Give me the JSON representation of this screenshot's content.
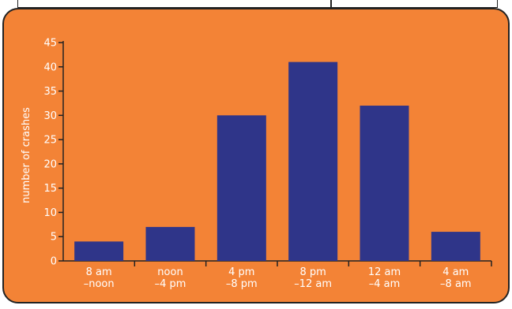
{
  "chart_data": {
    "type": "bar",
    "categories": [
      [
        "8 am",
        "–noon"
      ],
      [
        "noon",
        "–4 pm"
      ],
      [
        "4 pm",
        "–8 pm"
      ],
      [
        "8 pm",
        "–12 am"
      ],
      [
        "12 am",
        "–4 am"
      ],
      [
        "4 am",
        "–8 am"
      ]
    ],
    "values": [
      4,
      7,
      30,
      41,
      32,
      6
    ],
    "ylabel": "number of crashes",
    "xlabel": "",
    "ylim": [
      0,
      45
    ],
    "yticks": [
      0,
      5,
      10,
      15,
      20,
      25,
      30,
      35,
      40,
      45
    ],
    "grid": false
  },
  "colors": {
    "panel_background": "#f38336",
    "bar": "#2f3589",
    "axis": "#222222",
    "text": "#ffffff"
  }
}
